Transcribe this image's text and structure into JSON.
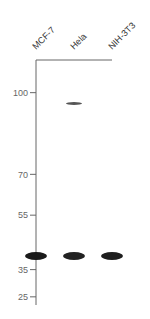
{
  "chart_data": {
    "type": "scatter",
    "categories": [
      "MCF-7",
      "Hela",
      "NIH-3T3"
    ],
    "series": [
      {
        "values": [
          40,
          40,
          40
        ],
        "colors": [
          "#1a1a1a",
          "#222222",
          "#1e1e1e"
        ],
        "marker": "ellipse"
      },
      {
        "values": [
          null,
          96,
          null
        ],
        "color": "#555555",
        "marker": "ellipse"
      }
    ],
    "ylim": [
      22,
      112
    ],
    "yticks": [
      100,
      70,
      55,
      35,
      25
    ],
    "grid": false,
    "legend": null
  }
}
